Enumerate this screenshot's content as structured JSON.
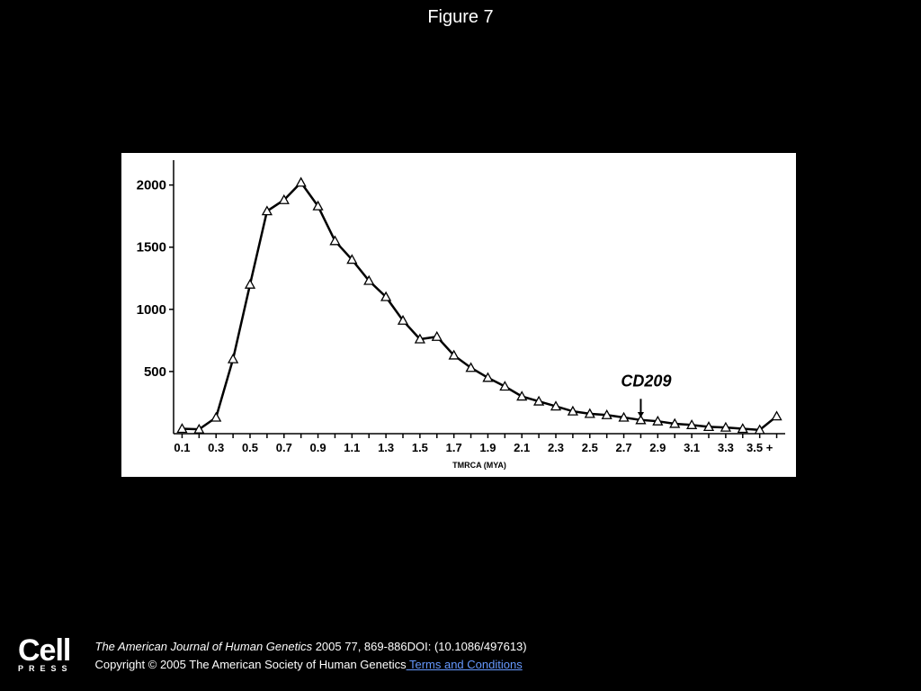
{
  "title": "Figure 7",
  "chart": {
    "type": "line",
    "background_color": "#ffffff",
    "line_color": "#000000",
    "marker_color": "#ffffff",
    "marker_stroke": "#000000",
    "marker_shape": "triangle",
    "marker_size": 5,
    "line_width": 2.5,
    "axis_color": "#000000",
    "axis_width": 1.5,
    "tick_length": 5,
    "x_label": "TMRCA (MYA)",
    "x_label_fontsize": 9,
    "x_label_fontweight": "bold",
    "y_ticks": [
      500,
      1000,
      1500,
      2000
    ],
    "y_tick_fontsize": 15,
    "y_tick_fontweight": "bold",
    "ylim": [
      0,
      2200
    ],
    "x_tick_labels": [
      "0.1",
      "0.3",
      "0.5",
      "0.7",
      "0.9",
      "1.1",
      "1.3",
      "1.5",
      "1.7",
      "1.9",
      "2.1",
      "2.3",
      "2.5",
      "2.7",
      "2.9",
      "3.1",
      "3.3",
      "3.5 +"
    ],
    "x_tick_fontsize": 13,
    "x_tick_fontweight": "bold",
    "x_values": [
      0.1,
      0.2,
      0.3,
      0.4,
      0.5,
      0.6,
      0.7,
      0.8,
      0.9,
      1.0,
      1.1,
      1.2,
      1.3,
      1.4,
      1.5,
      1.6,
      1.7,
      1.8,
      1.9,
      2.0,
      2.1,
      2.2,
      2.3,
      2.4,
      2.5,
      2.6,
      2.7,
      2.8,
      2.9,
      3.0,
      3.1,
      3.2,
      3.3,
      3.4,
      3.5,
      3.6
    ],
    "y_values": [
      40,
      35,
      130,
      600,
      1200,
      1790,
      1880,
      2020,
      1830,
      1550,
      1400,
      1230,
      1100,
      910,
      760,
      780,
      630,
      530,
      450,
      380,
      300,
      260,
      220,
      180,
      160,
      150,
      130,
      110,
      100,
      80,
      70,
      55,
      50,
      40,
      30,
      140
    ],
    "xlim": [
      0.05,
      3.65
    ],
    "annotation": {
      "label": "CD209",
      "x": 2.8,
      "y_text": 380,
      "arrow_from_y": 280,
      "arrow_to_y": 130,
      "fontsize": 18,
      "fontstyle": "italic",
      "fontweight": "bold",
      "color": "#000000"
    }
  },
  "footer": {
    "logo_main": "Cell",
    "logo_sub": "PRESS",
    "citation_journal": "The American Journal of Human Genetics",
    "citation_rest": " 2005 77, 869-886DOI: (10.1086/497613)",
    "copyright": "Copyright © 2005 The American Society of Human Genetics",
    "terms_text": " Terms and Conditions"
  }
}
